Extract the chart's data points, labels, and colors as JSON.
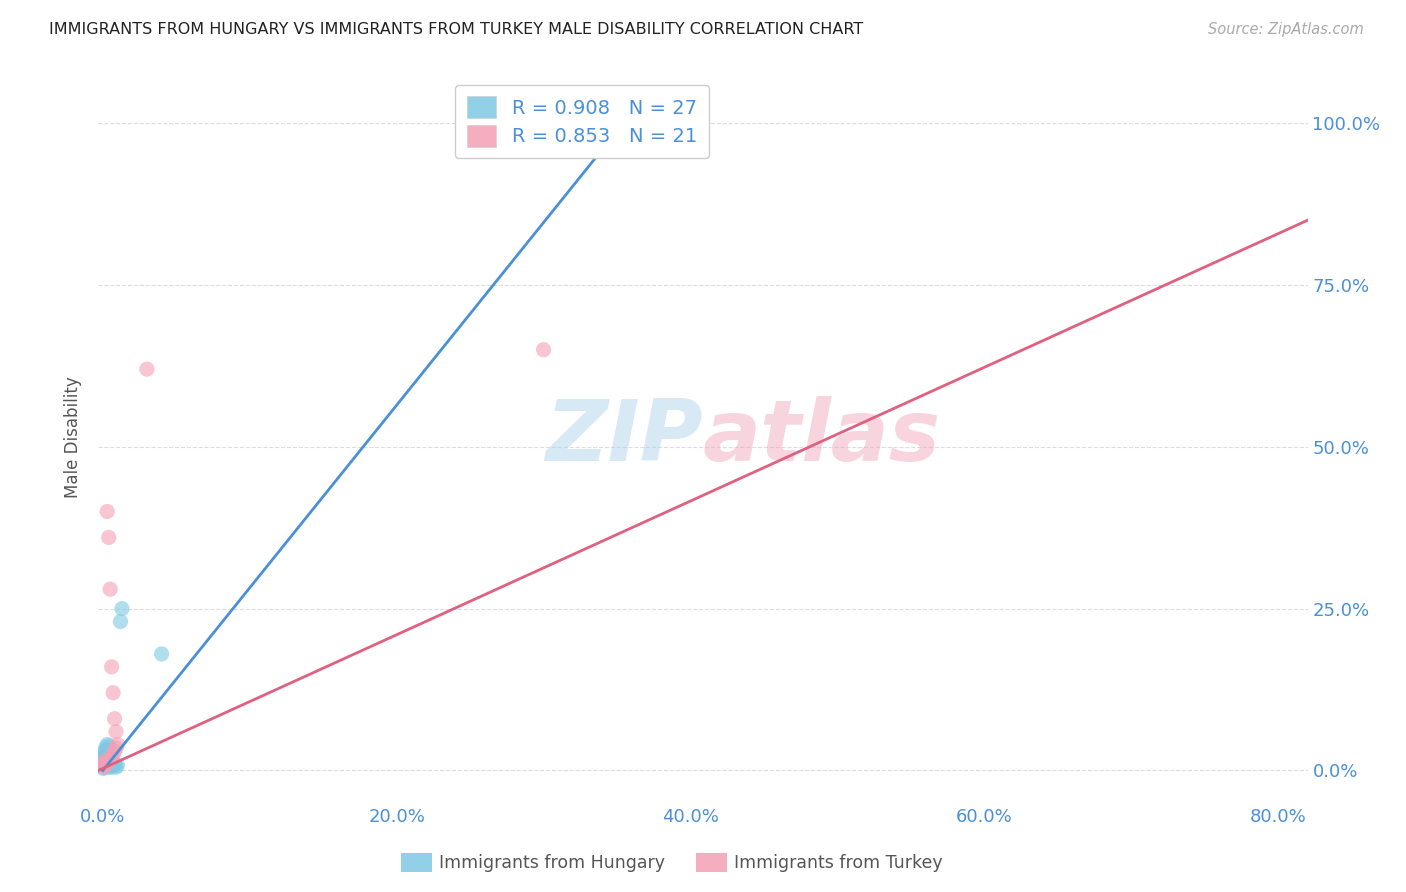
{
  "title": "IMMIGRANTS FROM HUNGARY VS IMMIGRANTS FROM TURKEY MALE DISABILITY CORRELATION CHART",
  "source": "Source: ZipAtlas.com",
  "xlabel_ticks": [
    "0.0%",
    "20.0%",
    "40.0%",
    "60.0%",
    "80.0%"
  ],
  "ylabel_ticks": [
    "0.0%",
    "25.0%",
    "50.0%",
    "75.0%",
    "100.0%"
  ],
  "xlim": [
    -0.003,
    0.82
  ],
  "ylim": [
    -0.05,
    1.08
  ],
  "ylabel": "Male Disability",
  "watermark_zip": "ZIP",
  "watermark_atlas": "atlas",
  "legend_label1": "R = 0.908   N = 27",
  "legend_label2": "R = 0.853   N = 21",
  "hungary_color": "#7ec8e3",
  "turkey_color": "#f4a0b5",
  "hungary_line_color": "#4a90d9",
  "turkey_line_color": "#e06080",
  "background": "#ffffff",
  "hungary_scatter": [
    [
      0.0005,
      0.005
    ],
    [
      0.001,
      0.01
    ],
    [
      0.0015,
      0.012
    ],
    [
      0.002,
      0.015
    ],
    [
      0.0005,
      0.02
    ],
    [
      0.001,
      0.025
    ],
    [
      0.0015,
      0.03
    ],
    [
      0.002,
      0.035
    ],
    [
      0.003,
      0.04
    ],
    [
      0.0008,
      0.008
    ],
    [
      0.0012,
      0.018
    ],
    [
      0.0018,
      0.022
    ],
    [
      0.0025,
      0.028
    ],
    [
      0.003,
      0.032
    ],
    [
      0.004,
      0.038
    ],
    [
      0.004,
      0.005
    ],
    [
      0.005,
      0.008
    ],
    [
      0.0055,
      0.01
    ],
    [
      0.006,
      0.005
    ],
    [
      0.007,
      0.008
    ],
    [
      0.008,
      0.01
    ],
    [
      0.009,
      0.005
    ],
    [
      0.01,
      0.008
    ],
    [
      0.012,
      0.23
    ],
    [
      0.013,
      0.25
    ],
    [
      0.04,
      0.18
    ],
    [
      0.0003,
      0.003
    ]
  ],
  "turkey_scatter": [
    [
      0.0005,
      0.005
    ],
    [
      0.001,
      0.008
    ],
    [
      0.0015,
      0.012
    ],
    [
      0.002,
      0.015
    ],
    [
      0.003,
      0.01
    ],
    [
      0.004,
      0.015
    ],
    [
      0.005,
      0.018
    ],
    [
      0.006,
      0.02
    ],
    [
      0.007,
      0.025
    ],
    [
      0.008,
      0.03
    ],
    [
      0.009,
      0.035
    ],
    [
      0.01,
      0.04
    ],
    [
      0.003,
      0.4
    ],
    [
      0.004,
      0.36
    ],
    [
      0.005,
      0.28
    ],
    [
      0.006,
      0.16
    ],
    [
      0.007,
      0.12
    ],
    [
      0.008,
      0.08
    ],
    [
      0.009,
      0.06
    ],
    [
      0.03,
      0.62
    ],
    [
      0.3,
      0.65
    ]
  ],
  "hungary_line_x": [
    0.0,
    0.365
  ],
  "hungary_line_y": [
    0.0,
    1.03
  ],
  "turkey_line_x": [
    -0.003,
    0.82
  ],
  "turkey_line_y": [
    0.0,
    0.85
  ],
  "grid_color": "#dddddd",
  "tick_color": "#4a90d9",
  "title_color": "#222222",
  "source_color": "#aaaaaa",
  "ylabel_color": "#555555",
  "legend_text_color": "#4a90d9",
  "bottom_label_color": "#555555"
}
